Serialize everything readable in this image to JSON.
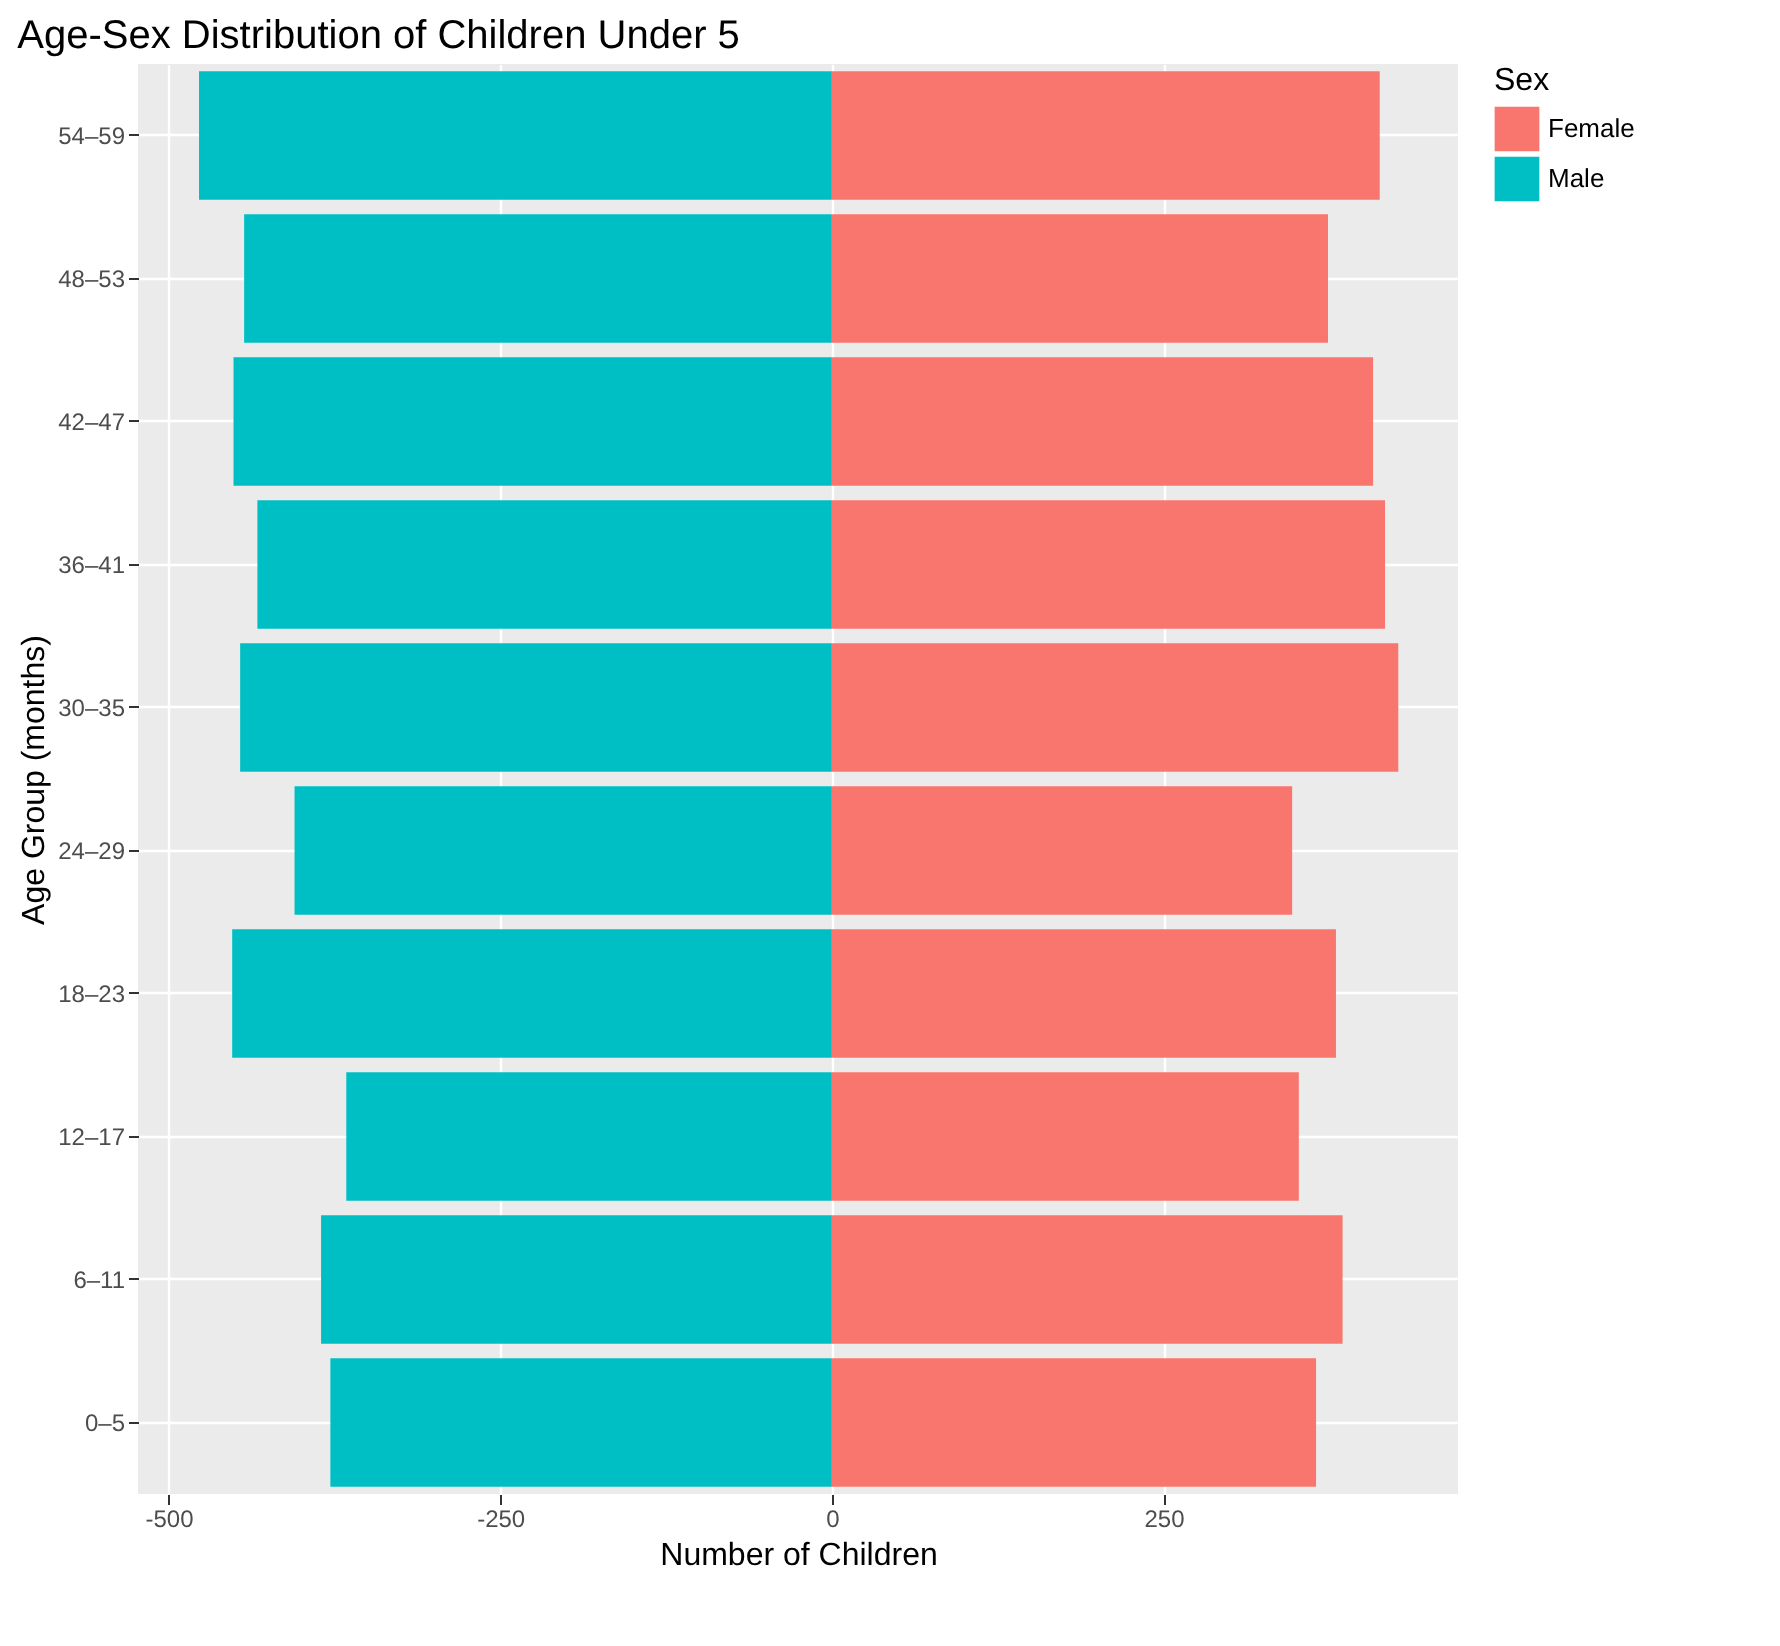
{
  "chart_data": {
    "type": "bar",
    "orientation": "horizontal",
    "title": "Age-Sex Distribution of Children Under 5",
    "xlabel": "Number of Children",
    "ylabel": "Age Group (months)",
    "legend_title": "Sex",
    "legend": "right",
    "grid": true,
    "stacked": true,
    "categories": [
      "54–59",
      "48–53",
      "42–47",
      "36–41",
      "30–35",
      "24–29",
      "18–23",
      "12–17",
      "6–11",
      "0–5"
    ],
    "series": [
      {
        "name": "Female",
        "color": "#f8766d",
        "values": [
          413,
          374,
          408,
          417,
          427,
          347,
          380,
          352,
          385,
          365
        ]
      },
      {
        "name": "Male",
        "color": "#00bfc4",
        "values": [
          -477,
          -443,
          -451,
          -433,
          -446,
          -405,
          -452,
          -366,
          -385,
          -378
        ]
      }
    ],
    "xlim": [
      -523,
      472
    ],
    "xticks": [
      -500,
      -250,
      0,
      250
    ]
  }
}
